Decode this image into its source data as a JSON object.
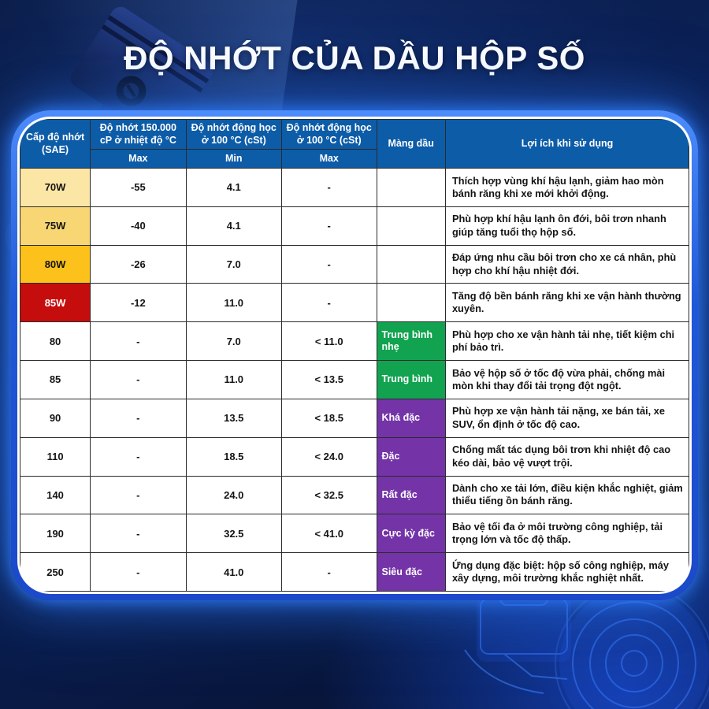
{
  "page": {
    "accent_colors": {
      "frame_glow": "#2f7dfb",
      "header_blue": "#0d5ca8",
      "green": "#11a350",
      "purple": "#7434a8",
      "yellow_light": "#fbe6a6",
      "yellow_mid": "#f9d674",
      "gold": "#fcc11b",
      "red": "#c50d0d"
    }
  },
  "chart_data": {
    "type": "table",
    "title": "ĐỘ NHỚT CỦA DẦU HỘP SỐ",
    "columns": [
      "Cấp độ nhớt (SAE)",
      "Độ nhớt 150.000 cP ở nhiệt độ °C",
      "Max",
      "Độ nhớt động học ở 100 °C (cSt)",
      "Min",
      "Độ nhớt động học ở 100 °C (cSt)",
      "Max",
      "Màng dầu",
      "Lợi ích khi sử dụng"
    ],
    "rows": [
      {
        "grade": "70W",
        "grade_bg": "#fbe6a6",
        "grade_text": "#141414",
        "cp150k_max": "-55",
        "kv100_min": "4.1",
        "kv100_max": "-",
        "film": "",
        "film_bg": "#ffffff",
        "benefit": "Thích hợp vùng khí hậu lạnh, giảm hao mòn bánh răng khi xe mới khởi động."
      },
      {
        "grade": "75W",
        "grade_bg": "#f9d674",
        "grade_text": "#141414",
        "cp150k_max": "-40",
        "kv100_min": "4.1",
        "kv100_max": "-",
        "film": "",
        "film_bg": "#ffffff",
        "benefit": "Phù hợp khí hậu lạnh ôn đới, bôi trơn nhanh giúp tăng tuổi thọ hộp số."
      },
      {
        "grade": "80W",
        "grade_bg": "#fcc11b",
        "grade_text": "#141414",
        "cp150k_max": "-26",
        "kv100_min": "7.0",
        "kv100_max": "-",
        "film": "",
        "film_bg": "#ffffff",
        "benefit": "Đáp ứng nhu cầu bôi trơn cho xe cá nhân, phù hợp cho khí hậu nhiệt đới."
      },
      {
        "grade": "85W",
        "grade_bg": "#c50d0d",
        "grade_text": "#ffffff",
        "cp150k_max": "-12",
        "kv100_min": "11.0",
        "kv100_max": "-",
        "film": "",
        "film_bg": "#ffffff",
        "benefit": "Tăng độ bền bánh răng khi xe vận hành thường xuyên."
      },
      {
        "grade": "80",
        "grade_bg": "#ffffff",
        "grade_text": "#141414",
        "cp150k_max": "-",
        "kv100_min": "7.0",
        "kv100_max": "< 11.0",
        "film": "Trung bình nhẹ",
        "film_bg": "#11a350",
        "benefit": "Phù hợp cho xe vận hành tải nhẹ, tiết kiệm chi phí bảo trì."
      },
      {
        "grade": "85",
        "grade_bg": "#ffffff",
        "grade_text": "#141414",
        "cp150k_max": "-",
        "kv100_min": "11.0",
        "kv100_max": "< 13.5",
        "film": "Trung bình",
        "film_bg": "#11a350",
        "benefit": "Bảo vệ hộp số ở tốc độ vừa phải, chống mài mòn khi thay đổi tải trọng đột ngột."
      },
      {
        "grade": "90",
        "grade_bg": "#ffffff",
        "grade_text": "#141414",
        "cp150k_max": "-",
        "kv100_min": "13.5",
        "kv100_max": "< 18.5",
        "film": "Khá đặc",
        "film_bg": "#7434a8",
        "benefit": "Phù hợp xe vận hành tải nặng, xe bán tải, xe SUV, ổn định ở tốc độ cao."
      },
      {
        "grade": "110",
        "grade_bg": "#ffffff",
        "grade_text": "#141414",
        "cp150k_max": "-",
        "kv100_min": "18.5",
        "kv100_max": "< 24.0",
        "film": "Đặc",
        "film_bg": "#7434a8",
        "benefit": "Chống mất tác dụng bôi trơn khi nhiệt độ cao kéo dài, bảo vệ vượt trội."
      },
      {
        "grade": "140",
        "grade_bg": "#ffffff",
        "grade_text": "#141414",
        "cp150k_max": "-",
        "kv100_min": "24.0",
        "kv100_max": "< 32.5",
        "film": "Rất đặc",
        "film_bg": "#7434a8",
        "benefit": "Dành cho xe tải lớn, điều kiện khắc nghiệt, giảm thiểu tiếng ồn bánh răng."
      },
      {
        "grade": "190",
        "grade_bg": "#ffffff",
        "grade_text": "#141414",
        "cp150k_max": "-",
        "kv100_min": "32.5",
        "kv100_max": "< 41.0",
        "film": "Cực kỳ đặc",
        "film_bg": "#7434a8",
        "benefit": "Bảo vệ tối đa ở môi trường công nghiệp, tải trọng lớn và tốc độ thấp."
      },
      {
        "grade": "250",
        "grade_bg": "#ffffff",
        "grade_text": "#141414",
        "cp150k_max": "-",
        "kv100_min": "41.0",
        "kv100_max": "-",
        "film": "Siêu đặc",
        "film_bg": "#7434a8",
        "benefit": "Ứng dụng đặc biệt: hộp số công nghiệp, máy xây dựng, môi trường khắc nghiệt nhất."
      }
    ]
  }
}
